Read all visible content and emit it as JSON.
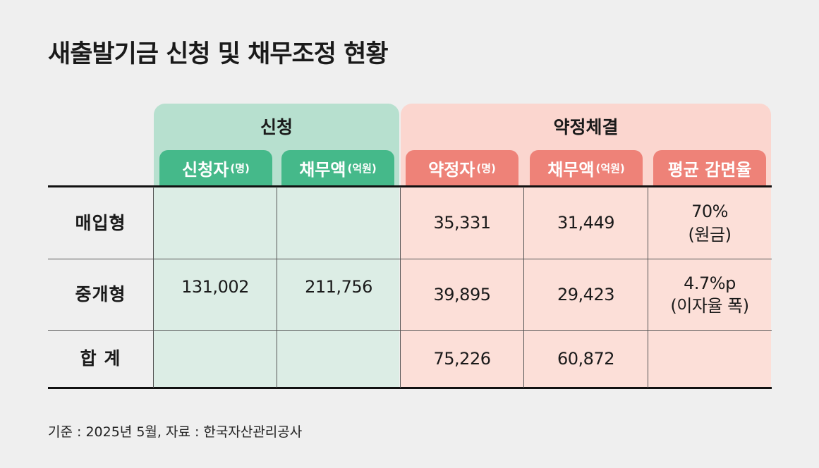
{
  "title": "새출발기금 신청 및 채무조정 현황",
  "groups": {
    "apply": "신청",
    "contract": "약정체결"
  },
  "columns": [
    {
      "main": "신청자",
      "unit": "(명)"
    },
    {
      "main": "채무액",
      "unit": "(억원)"
    },
    {
      "main": "약정자",
      "unit": "(명)"
    },
    {
      "main": "채무액",
      "unit": "(억원)"
    },
    {
      "main": "평균 감면율",
      "unit": ""
    }
  ],
  "rows": [
    {
      "label": "매입형",
      "contractors": "35,331",
      "contract_debt": "31,449",
      "rate_value": "70%",
      "rate_note": "(원금)"
    },
    {
      "label": "중개형",
      "contractors": "39,895",
      "contract_debt": "29,423",
      "rate_value": "4.7%p",
      "rate_note": "(이자율 폭)"
    },
    {
      "label": "합 계",
      "contractors": "75,226",
      "contract_debt": "60,872",
      "rate_value": "",
      "rate_note": ""
    }
  ],
  "merged": {
    "applicants": "131,002",
    "apply_debt": "211,756"
  },
  "source": "기준 : 2025년 5월, 자료 : 한국자산관리공사",
  "colors": {
    "green_header": "#45b98a",
    "green_group": "#b7e0cf",
    "green_body": "#dcede5",
    "pink_header": "#ee8278",
    "pink_group": "#fbd6cf",
    "pink_body": "#fcdfd8"
  },
  "chart_data": {
    "type": "table",
    "title": "새출발기금 신청 및 채무조정 현황",
    "column_groups": [
      {
        "name": "신청",
        "columns": [
          "신청자(명)",
          "채무액(억원)"
        ]
      },
      {
        "name": "약정체결",
        "columns": [
          "약정자(명)",
          "채무액(억원)",
          "평균 감면율"
        ]
      }
    ],
    "row_labels": [
      "매입형",
      "중개형",
      "합 계"
    ],
    "cells": [
      [
        "131,002",
        "211,756",
        "35,331",
        "31,449",
        "70% (원금)"
      ],
      [
        "131,002",
        "211,756",
        "39,895",
        "29,423",
        "4.7%p (이자율 폭)"
      ],
      [
        "131,002",
        "211,756",
        "75,226",
        "60,872",
        ""
      ]
    ],
    "merged_cells": [
      "신청자(명) spans all rows",
      "채무액(억원) spans all rows"
    ]
  }
}
